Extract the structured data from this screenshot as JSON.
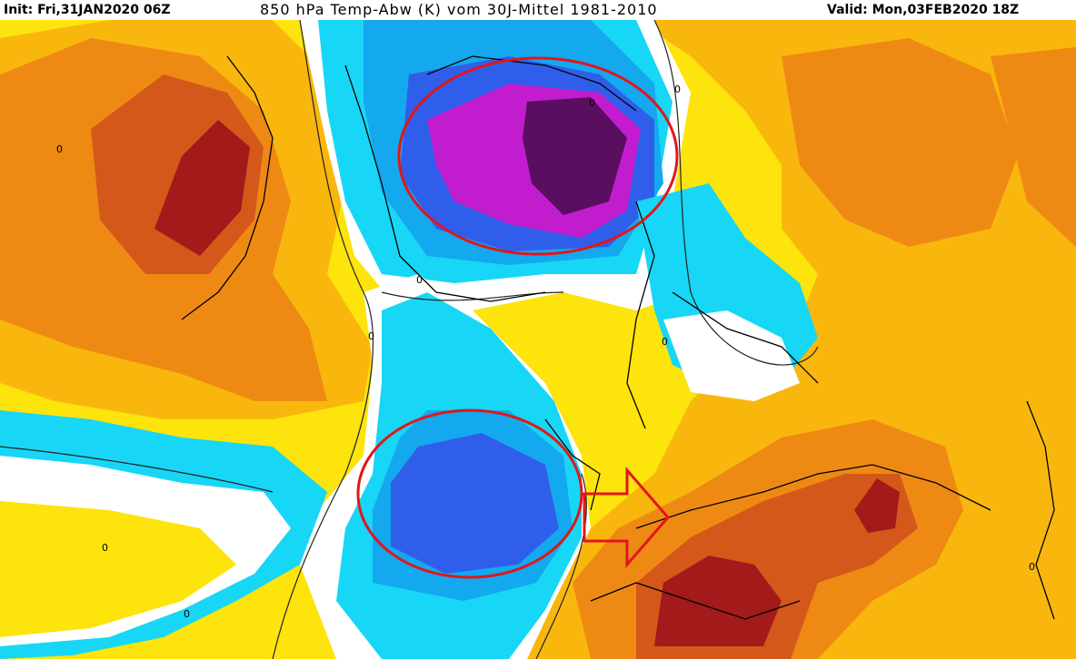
{
  "header": {
    "init_label": "Init: Fri,31JAN2020 06Z",
    "parameter_label": "850 hPa Temp-Abw (K) vom 30J-Mittel 1981-2010",
    "valid_label": "Valid: Mon,03FEB2020 18Z"
  },
  "map": {
    "contour_labels": [
      "0",
      "0",
      "0",
      "0",
      "0",
      "0",
      "0",
      "0",
      "0"
    ],
    "palette": {
      "extreme_warm": "#a31a1a",
      "very_warm": "#d4581a",
      "warm": "#ee8a14",
      "mild_warm": "#f9b70e",
      "slight_warm": "#fce40c",
      "neutral": "#ffffff",
      "slight_cold": "#18d6f5",
      "cold": "#14a8ee",
      "very_cold": "#2f5fea",
      "extreme_cold": "#c11dcf",
      "deepest_cold": "#5a0e5f"
    },
    "annotation_color": "#e0161b"
  }
}
